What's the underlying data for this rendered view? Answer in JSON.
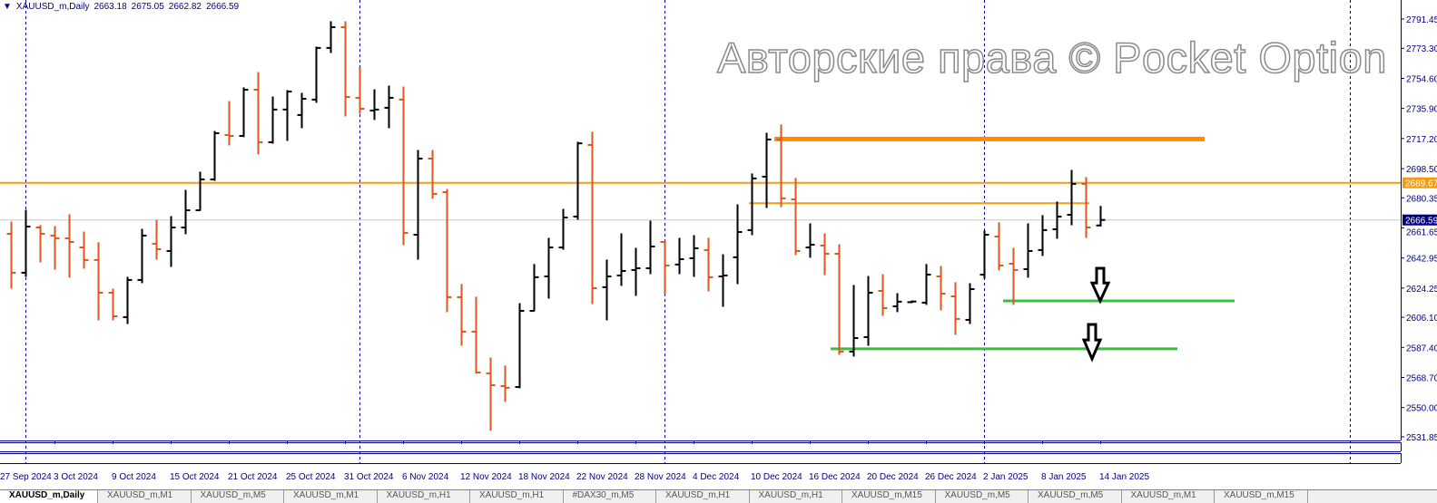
{
  "header": {
    "collapse_icon": "triangle-down-icon",
    "symbol": "XAUUSD_m,Daily",
    "open": "2663.18",
    "high": "2675.05",
    "low": "2662.82",
    "close": "2666.59"
  },
  "watermark": "Авторские права © Pocket Option",
  "tabs": [
    {
      "label": "XAUUSD_m,Daily",
      "active": true
    },
    {
      "label": "XAUUSD_m,M1"
    },
    {
      "label": "XAUUSD_m,M5"
    },
    {
      "label": "XAUUSD_m,M1"
    },
    {
      "label": "XAUUSD_m,H1"
    },
    {
      "label": "XAUUSD_m,H1"
    },
    {
      "label": "#DAX30_m,M5"
    },
    {
      "label": "XAUUSD_m,H1"
    },
    {
      "label": "XAUUSD_m,H1"
    },
    {
      "label": "XAUUSD_m,M15"
    },
    {
      "label": "XAUUSD_m,M5"
    },
    {
      "label": "XAUUSD_m,M5"
    },
    {
      "label": "XAUUSD_m,M1"
    },
    {
      "label": "XAUUSD_m,M15"
    }
  ],
  "colors": {
    "bull": "#000000",
    "bear": "#e0561a",
    "level_orange": "#f39c12",
    "level_thick": "#ff8c00",
    "support_green": "#3cbc3c",
    "axis": "#000080",
    "bid_line": "#c8c8c8",
    "bid_label_bg": "#000080",
    "level_label_bg": "#f39c12"
  },
  "chart_data": {
    "type": "ohlc-bar",
    "symbol": "XAUUSD_m",
    "timeframe": "Daily",
    "ylim": [
      2531.85,
      2791.45
    ],
    "y_ticks": [
      "2791.45",
      "2773.30",
      "2754.60",
      "2735.90",
      "2717.20",
      "2698.50",
      "2680.35",
      "2661.65",
      "2642.95",
      "2624.25",
      "2606.10",
      "2587.40",
      "2568.70",
      "2550.00",
      "2531.85"
    ],
    "x_labels": [
      {
        "text": "27 Sep 2024",
        "date": "2024.09.27"
      },
      {
        "text": "3 Oct 2024",
        "date": "2024.10.03"
      },
      {
        "text": "9 Oct 2024",
        "date": "2024.10.09"
      },
      {
        "text": "15 Oct 2024",
        "date": "2024.10.15"
      },
      {
        "text": "21 Oct 2024",
        "date": "2024.10.21"
      },
      {
        "text": "25 Oct 2024",
        "date": "2024.10.25"
      },
      {
        "text": "31 Oct 2024",
        "date": "2024.10.31"
      },
      {
        "text": "6 Nov 2024",
        "date": "2024.11.06"
      },
      {
        "text": "12 Nov 2024",
        "date": "2024.11.12"
      },
      {
        "text": "18 Nov 2024",
        "date": "2024.11.18"
      },
      {
        "text": "22 Nov 2024",
        "date": "2024.11.22"
      },
      {
        "text": "28 Nov 2024",
        "date": "2024.11.28"
      },
      {
        "text": "4 Dec 2024",
        "date": "2024.12.04"
      },
      {
        "text": "10 Dec 2024",
        "date": "2024.12.10"
      },
      {
        "text": "16 Dec 2024",
        "date": "2024.12.16"
      },
      {
        "text": "20 Dec 2024",
        "date": "2024.12.20"
      },
      {
        "text": "26 Dec 2024",
        "date": "2024.12.26"
      },
      {
        "text": "2 Jan 2025",
        "date": "2025.01.02"
      },
      {
        "text": "8 Jan 2025",
        "date": "2025.01.08"
      },
      {
        "text": "14 Jan 2025",
        "date": "2025.01.14"
      }
    ],
    "bars_format": [
      "date",
      "open",
      "high",
      "low",
      "close"
    ],
    "bars": [
      [
        "2024.09.30",
        2658.0,
        2665.3,
        2624.2,
        2633.8
      ],
      [
        "2024.10.01",
        2633.8,
        2672.6,
        2631.5,
        2662.5
      ],
      [
        "2024.10.02",
        2661.9,
        2663.1,
        2640.5,
        2658.0
      ],
      [
        "2024.10.03",
        2656.9,
        2662.5,
        2636.0,
        2655.2
      ],
      [
        "2024.10.04",
        2655.2,
        2669.8,
        2631.0,
        2652.9
      ],
      [
        "2024.10.07",
        2649.5,
        2659.1,
        2636.6,
        2641.7
      ],
      [
        "2024.10.08",
        2641.7,
        2652.4,
        2604.5,
        2621.4
      ],
      [
        "2024.10.09",
        2621.4,
        2623.6,
        2604.5,
        2606.7
      ],
      [
        "2024.10.10",
        2606.2,
        2631.0,
        2602.2,
        2629.3
      ],
      [
        "2024.10.11",
        2629.3,
        2660.8,
        2627.6,
        2656.9
      ],
      [
        "2024.10.14",
        2651.8,
        2666.4,
        2642.2,
        2648.4
      ],
      [
        "2024.10.15",
        2647.3,
        2668.7,
        2637.7,
        2661.9
      ],
      [
        "2024.10.16",
        2661.9,
        2685.0,
        2658.0,
        2672.6
      ],
      [
        "2024.10.17",
        2672.6,
        2696.3,
        2672.6,
        2691.8
      ],
      [
        "2024.10.18",
        2691.8,
        2721.6,
        2691.2,
        2720.5
      ],
      [
        "2024.10.21",
        2719.4,
        2740.2,
        2713.2,
        2718.8
      ],
      [
        "2024.10.22",
        2718.8,
        2748.7,
        2718.3,
        2747.5
      ],
      [
        "2024.10.23",
        2747.5,
        2758.2,
        2707.6,
        2714.9
      ],
      [
        "2024.10.24",
        2714.9,
        2743.0,
        2714.3,
        2735.2
      ],
      [
        "2024.10.25",
        2735.2,
        2747.0,
        2716.0,
        2746.4
      ],
      [
        "2024.10.28",
        2731.8,
        2745.3,
        2723.9,
        2741.9
      ],
      [
        "2024.10.29",
        2741.4,
        2774.0,
        2739.7,
        2773.5
      ],
      [
        "2024.10.30",
        2773.5,
        2789.8,
        2770.6,
        2786.4
      ],
      [
        "2024.10.31",
        2786.4,
        2789.8,
        2731.2,
        2743.0
      ],
      [
        "2024.11.01",
        2742.5,
        2761.6,
        2732.9,
        2735.7
      ],
      [
        "2024.11.04",
        2734.6,
        2747.5,
        2729.0,
        2735.2
      ],
      [
        "2024.11.05",
        2736.3,
        2749.8,
        2723.9,
        2742.5
      ],
      [
        "2024.11.06",
        2741.4,
        2749.2,
        2651.2,
        2658.6
      ],
      [
        "2024.11.07",
        2657.4,
        2709.8,
        2642.2,
        2704.7
      ],
      [
        "2024.11.08",
        2704.7,
        2709.8,
        2680.0,
        2682.8
      ],
      [
        "2024.11.11",
        2683.9,
        2685.6,
        2609.6,
        2618.6
      ],
      [
        "2024.11.12",
        2618.6,
        2626.5,
        2588.7,
        2597.2
      ],
      [
        "2024.11.13",
        2597.2,
        2618.6,
        2571.3,
        2571.8
      ],
      [
        "2024.11.14",
        2571.3,
        2580.8,
        2535.8,
        2563.9
      ],
      [
        "2024.11.15",
        2563.4,
        2575.8,
        2553.8,
        2562.3
      ],
      [
        "2024.11.18",
        2562.8,
        2614.6,
        2562.3,
        2610.1
      ],
      [
        "2024.11.19",
        2610.1,
        2638.9,
        2610.1,
        2631.0
      ],
      [
        "2024.11.20",
        2631.5,
        2655.2,
        2618.0,
        2649.5
      ],
      [
        "2024.11.21",
        2649.5,
        2673.2,
        2648.4,
        2668.1
      ],
      [
        "2024.11.22",
        2668.7,
        2714.9,
        2667.0,
        2714.2
      ],
      [
        "2024.11.25",
        2713.2,
        2721.1,
        2614.6,
        2624.2
      ],
      [
        "2024.11.26",
        2624.8,
        2641.7,
        2604.5,
        2631.5
      ],
      [
        "2024.11.27",
        2632.1,
        2658.0,
        2625.9,
        2634.9
      ],
      [
        "2024.11.28",
        2635.5,
        2649.0,
        2619.7,
        2636.6
      ],
      [
        "2024.11.29",
        2636.6,
        2665.9,
        2633.2,
        2650.1
      ],
      [
        "2024.12.02",
        2652.9,
        2653.5,
        2620.8,
        2638.3
      ],
      [
        "2024.12.03",
        2638.9,
        2655.2,
        2633.2,
        2642.2
      ],
      [
        "2024.12.04",
        2642.8,
        2656.9,
        2631.5,
        2649.0
      ],
      [
        "2024.12.05",
        2647.9,
        2655.2,
        2622.5,
        2631.0
      ],
      [
        "2024.12.06",
        2631.5,
        2645.0,
        2612.9,
        2632.1
      ],
      [
        "2024.12.09",
        2643.4,
        2676.0,
        2627.0,
        2659.1
      ],
      [
        "2024.12.10",
        2660.3,
        2695.2,
        2657.4,
        2692.4
      ],
      [
        "2024.12.11",
        2693.5,
        2720.5,
        2674.3,
        2716.6
      ],
      [
        "2024.12.12",
        2716.6,
        2725.6,
        2674.9,
        2680.0
      ],
      [
        "2024.12.13",
        2679.4,
        2692.4,
        2645.0,
        2647.3
      ],
      [
        "2024.12.16",
        2649.5,
        2664.2,
        2643.4,
        2651.2
      ],
      [
        "2024.12.17",
        2650.7,
        2658.0,
        2632.6,
        2645.6
      ],
      [
        "2024.12.18",
        2645.6,
        2651.2,
        2583.1,
        2584.8
      ],
      [
        "2024.12.19",
        2584.8,
        2625.9,
        2582.0,
        2593.2
      ],
      [
        "2024.12.20",
        2593.8,
        2631.5,
        2588.7,
        2621.4
      ],
      [
        "2024.12.23",
        2622.5,
        2632.6,
        2607.3,
        2611.8
      ],
      [
        "2024.12.24",
        2612.9,
        2620.8,
        2609.6,
        2615.8
      ],
      [
        "2024.12.25",
        2615.5,
        2616.3,
        2615.2,
        2615.9
      ],
      [
        "2024.12.26",
        2615.2,
        2638.9,
        2614.1,
        2632.6
      ],
      [
        "2024.12.27",
        2631.5,
        2637.7,
        2610.7,
        2620.8
      ],
      [
        "2024.12.30",
        2619.1,
        2627.6,
        2595.5,
        2605.1
      ],
      [
        "2024.12.31",
        2604.5,
        2627.0,
        2602.2,
        2623.6
      ],
      [
        "2025.01.02",
        2632.6,
        2659.7,
        2630.4,
        2657.4
      ],
      [
        "2025.01.03",
        2656.3,
        2664.8,
        2635.5,
        2638.3
      ],
      [
        "2025.01.06",
        2639.4,
        2649.0,
        2614.1,
        2635.5
      ],
      [
        "2025.01.07",
        2636.0,
        2664.2,
        2631.0,
        2647.3
      ],
      [
        "2025.01.08",
        2647.9,
        2669.3,
        2644.5,
        2660.3
      ],
      [
        "2025.01.09",
        2660.8,
        2677.7,
        2655.2,
        2668.7
      ],
      [
        "2025.01.10",
        2669.8,
        2697.4,
        2663.6,
        2689.0
      ],
      [
        "2025.01.13",
        2689.0,
        2692.9,
        2655.7,
        2661.9
      ],
      [
        "2025.01.14",
        2663.18,
        2675.05,
        2662.82,
        2666.59
      ]
    ],
    "bid": {
      "price": "2666.59"
    },
    "levels": [
      {
        "name": "resistance-thick",
        "price": 2716.9,
        "color": "level_thick"
      },
      {
        "name": "resistance-level",
        "price": 2689.67,
        "label": "2689.67",
        "color": "level_orange"
      },
      {
        "name": "resistance-short",
        "price": 2677.0,
        "color": "level_orange"
      },
      {
        "name": "support-upper",
        "price": 2616.3,
        "color": "support_green"
      },
      {
        "name": "support-lower",
        "price": 2586.5,
        "color": "support_green"
      }
    ],
    "arrows": [
      {
        "name": "down-arrow-upper",
        "direction": "down"
      },
      {
        "name": "down-arrow-lower",
        "direction": "down"
      }
    ]
  }
}
